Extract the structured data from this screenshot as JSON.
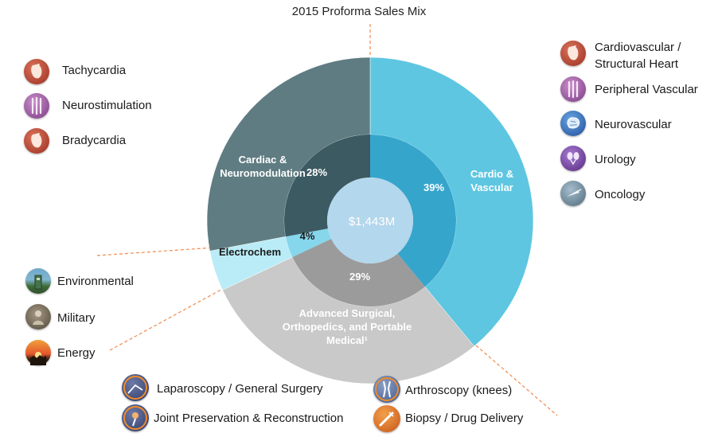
{
  "chart_data": {
    "type": "pie",
    "title": "2015 Proforma Sales Mix",
    "center_label": "$1,443M",
    "segments": [
      {
        "name": "Cardio & Vascular",
        "label_lines": [
          "Cardio &",
          "Vascular"
        ],
        "value": 39,
        "value_label": "39%"
      },
      {
        "name": "Advanced Surgical, Orthopedics, and Portable Medical",
        "label_lines": [
          "Advanced Surgical,",
          "Orthopedics, and Portable",
          "Medical¹"
        ],
        "value": 29,
        "value_label": "29%"
      },
      {
        "name": "Electrochem",
        "label_lines": [
          "Electrochem"
        ],
        "value": 4,
        "value_label": "4%"
      },
      {
        "name": "Cardiac & Neuromodulation",
        "label_lines": [
          "Cardiac &",
          "Neuromodulation"
        ],
        "value": 28,
        "value_label": "28%"
      }
    ],
    "colors": {
      "cardio_outer": "#5ec6e1",
      "cardio_inner": "#36a5cc",
      "surgical_outer": "#c9c9c9",
      "surgical_inner": "#9b9b9b",
      "electro_outer": "#b9ecf6",
      "electro_inner": "#86d6ec",
      "cardiac_outer": "#5f7c82",
      "cardiac_inner": "#3c5a61",
      "center": "#b3d7ec",
      "leader": "#f08a4b"
    }
  },
  "legends": {
    "cardiac_neuromodulation": [
      {
        "label": "Tachycardia",
        "icon": "heart-icon"
      },
      {
        "label": "Neurostimulation",
        "icon": "spine-icon"
      },
      {
        "label": "Bradycardia",
        "icon": "heart-icon"
      }
    ],
    "cardio_vascular": [
      {
        "label_lines": [
          "Cardiovascular /",
          "Structural Heart"
        ],
        "icon": "heart-icon"
      },
      {
        "label": "Peripheral Vascular",
        "icon": "vessel-icon"
      },
      {
        "label": "Neurovascular",
        "icon": "brain-icon"
      },
      {
        "label": "Urology",
        "icon": "kidney-icon"
      },
      {
        "label": "Oncology",
        "icon": "needle-icon"
      }
    ],
    "electrochem": [
      {
        "label": "Environmental",
        "icon": "tower-icon"
      },
      {
        "label": "Military",
        "icon": "soldier-icon"
      },
      {
        "label": "Energy",
        "icon": "sunset-icon"
      }
    ],
    "advanced_surgical": [
      {
        "label": "Laparoscopy / General Surgery",
        "icon": "laparoscope-icon"
      },
      {
        "label": "Joint Preservation & Reconstruction",
        "icon": "joint-icon"
      },
      {
        "label": "Arthroscopy (knees)",
        "icon": "knee-icon"
      },
      {
        "label": "Biopsy / Drug Delivery",
        "icon": "syringe-icon"
      }
    ]
  }
}
